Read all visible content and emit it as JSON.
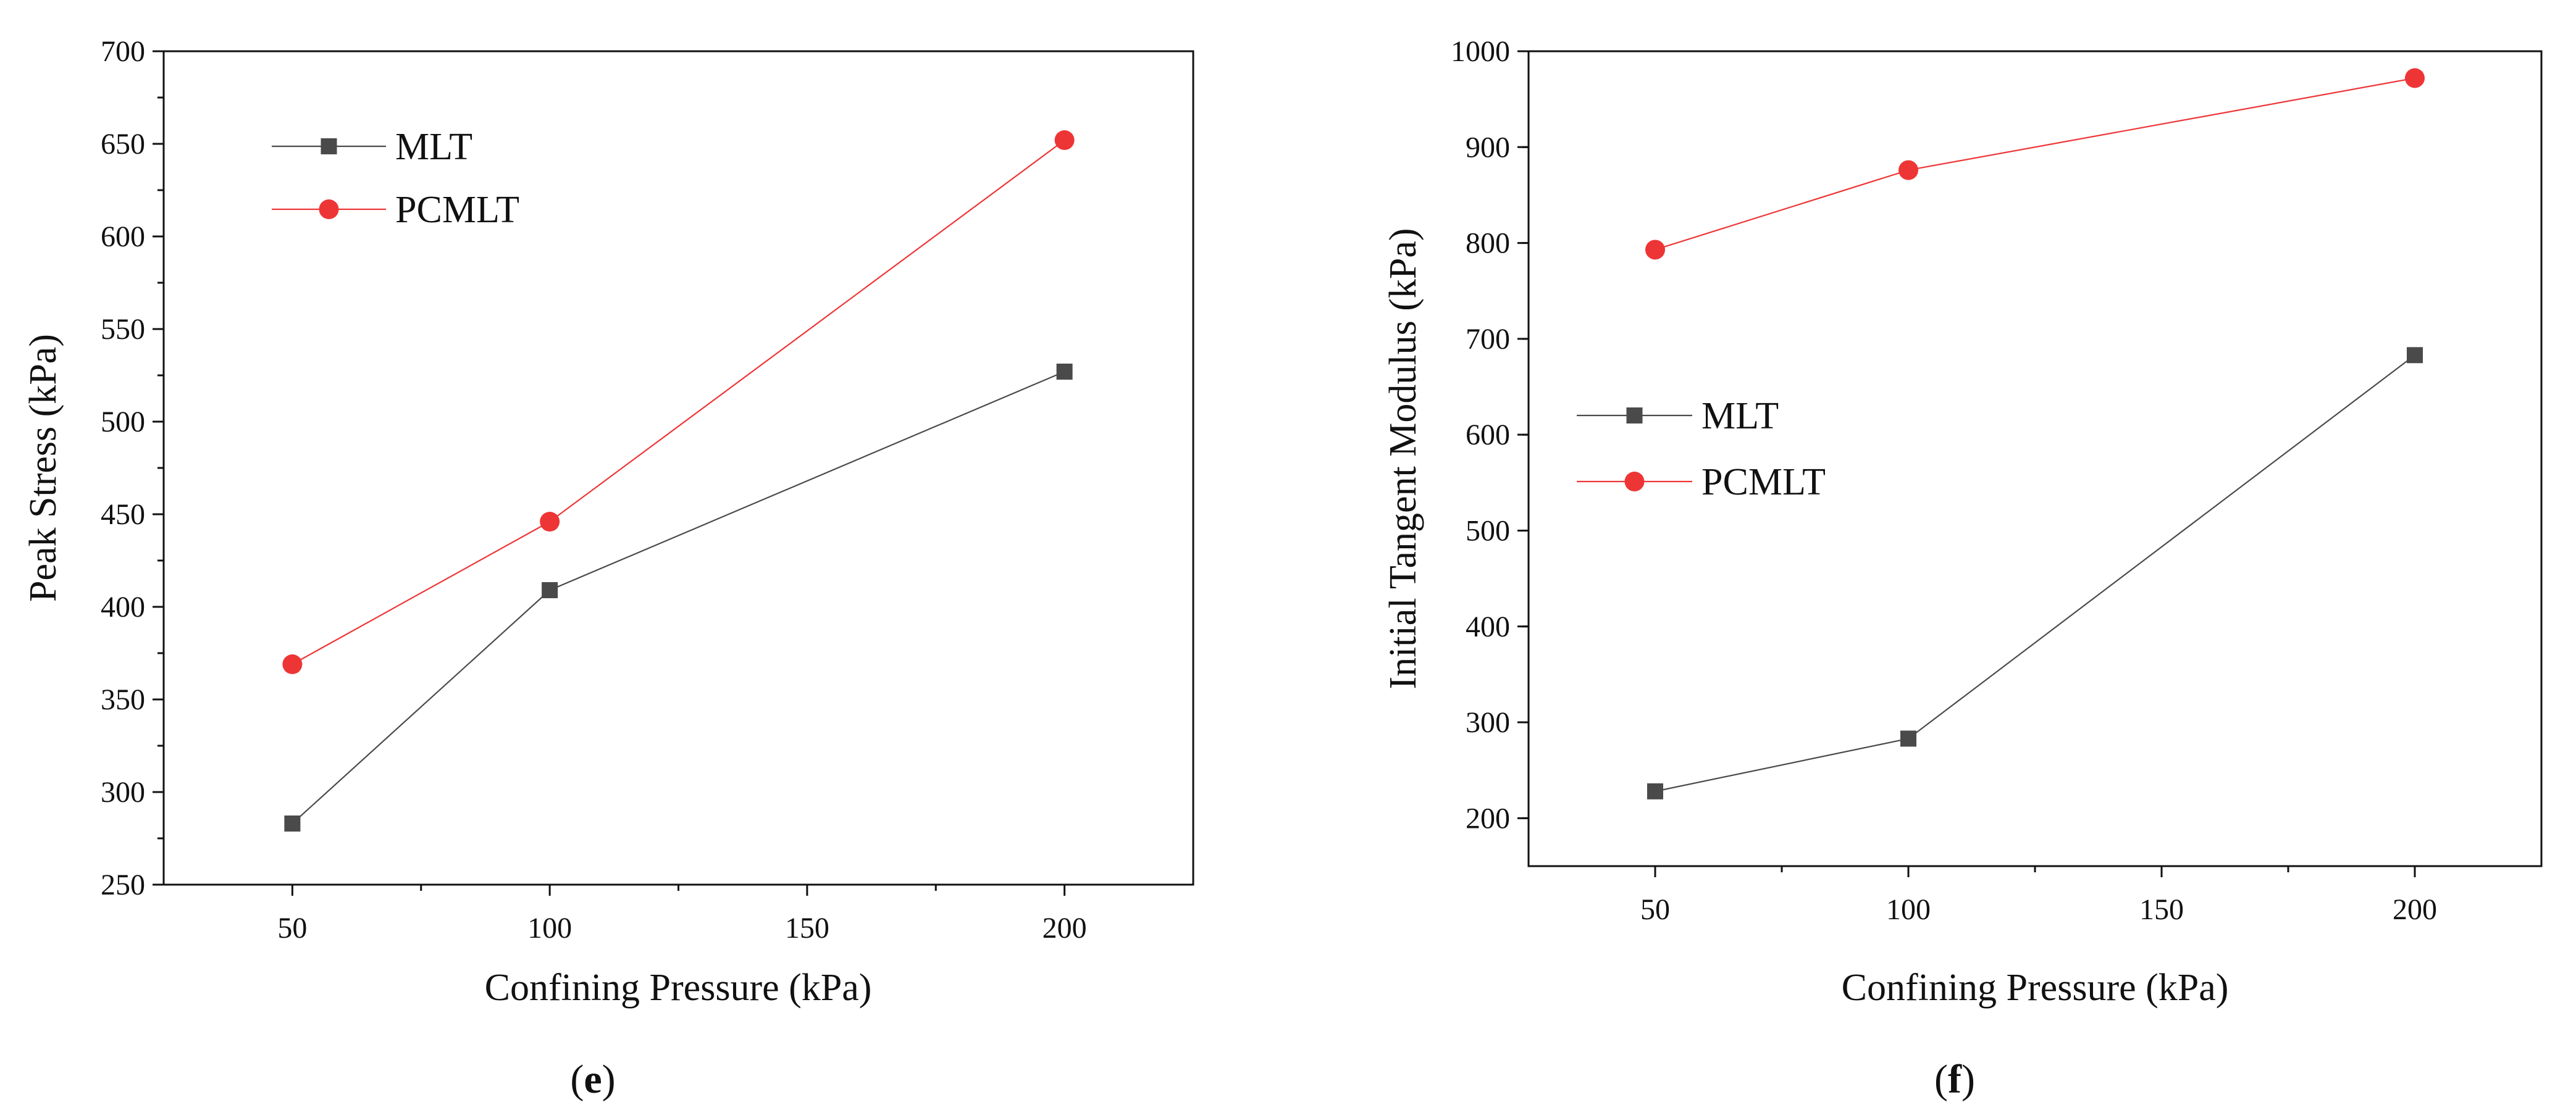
{
  "chart_data": [
    {
      "type": "line",
      "panel_label": "e",
      "xlabel": "Confining Pressure (kPa)",
      "ylabel": "Peak Stress (kPa)",
      "xlim": [
        25,
        225
      ],
      "ylim": [
        250,
        700
      ],
      "xticks": [
        50,
        100,
        150,
        200
      ],
      "yticks": [
        250,
        300,
        350,
        400,
        450,
        500,
        550,
        600,
        650,
        700
      ],
      "x": [
        50,
        100,
        200
      ],
      "legend_position": "top-left",
      "series": [
        {
          "name": "MLT",
          "marker": "square",
          "color": "#4a4a4a",
          "values": [
            283,
            409,
            527
          ]
        },
        {
          "name": "PCMLT",
          "marker": "circle",
          "color": "#ee3535",
          "values": [
            369,
            446,
            652
          ]
        }
      ]
    },
    {
      "type": "line",
      "panel_label": "f",
      "xlabel": "Confining Pressure (kPa)",
      "ylabel": "Initial Tangent Modulus (kPa)",
      "xlim": [
        25,
        225
      ],
      "ylim": [
        150,
        1000
      ],
      "xticks": [
        50,
        100,
        150,
        200
      ],
      "yticks": [
        200,
        300,
        400,
        500,
        600,
        700,
        800,
        900,
        1000
      ],
      "x": [
        50,
        100,
        200
      ],
      "legend_position": "center-left",
      "series": [
        {
          "name": "MLT",
          "marker": "square",
          "color": "#4a4a4a",
          "values": [
            228,
            283,
            683
          ]
        },
        {
          "name": "PCMLT",
          "marker": "circle",
          "color": "#ee3535",
          "values": [
            793,
            876,
            972
          ]
        }
      ]
    }
  ]
}
